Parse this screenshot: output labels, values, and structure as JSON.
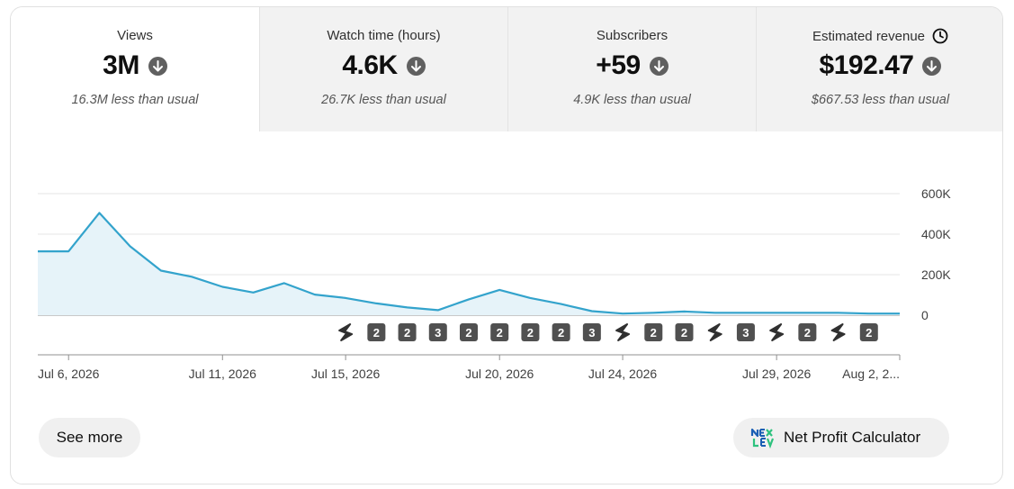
{
  "metrics": [
    {
      "label": "Views",
      "value": "3M",
      "comparison": "16.3M less than usual",
      "trend": "down",
      "active": true
    },
    {
      "label": "Watch time (hours)",
      "value": "4.6K",
      "comparison": "26.7K less than usual",
      "trend": "down",
      "active": false
    },
    {
      "label": "Subscribers",
      "value": "+59",
      "comparison": "4.9K less than usual",
      "trend": "down",
      "active": false
    },
    {
      "label": "Estimated revenue",
      "value": "$192.47",
      "comparison": "$667.53 less than usual",
      "trend": "down",
      "active": false,
      "icon": "clock-icon"
    }
  ],
  "chart_data": {
    "type": "area",
    "title": "",
    "xlabel": "",
    "ylabel": "",
    "ylim": [
      0,
      600000
    ],
    "yticks": [
      0,
      200000,
      400000,
      600000
    ],
    "ytick_labels": [
      "0",
      "200K",
      "400K",
      "600K"
    ],
    "y_axis_position": "right",
    "grid": true,
    "x": [
      "Jul 5",
      "Jul 6",
      "Jul 7",
      "Jul 8",
      "Jul 9",
      "Jul 10",
      "Jul 11",
      "Jul 12",
      "Jul 13",
      "Jul 14",
      "Jul 15",
      "Jul 16",
      "Jul 17",
      "Jul 18",
      "Jul 19",
      "Jul 20",
      "Jul 21",
      "Jul 22",
      "Jul 23",
      "Jul 24",
      "Jul 25",
      "Jul 26",
      "Jul 27",
      "Jul 28",
      "Jul 29",
      "Jul 30",
      "Jul 31",
      "Aug 1",
      "Aug 2"
    ],
    "values": [
      315000,
      315000,
      505000,
      340000,
      220000,
      190000,
      140000,
      112000,
      158000,
      102000,
      85000,
      58000,
      38000,
      25000,
      78000,
      125000,
      85000,
      55000,
      20000,
      8000,
      12000,
      18000,
      12000,
      12000,
      12000,
      12000,
      12000,
      8000,
      8000
    ],
    "x_tick_labels": [
      {
        "index": 1,
        "label": "Jul 6, 2026"
      },
      {
        "index": 6,
        "label": "Jul 11, 2026"
      },
      {
        "index": 10,
        "label": "Jul 15, 2026"
      },
      {
        "index": 15,
        "label": "Jul 20, 2026"
      },
      {
        "index": 19,
        "label": "Jul 24, 2026"
      },
      {
        "index": 24,
        "label": "Jul 29, 2026"
      },
      {
        "index": 28,
        "label": "Aug 2, 2..."
      }
    ],
    "line_color": "#33a3cc",
    "fill_color": "#e6f3f9",
    "markers": [
      {
        "index": 10,
        "type": "shorts",
        "label": ""
      },
      {
        "index": 11,
        "type": "count",
        "label": "2"
      },
      {
        "index": 12,
        "type": "count",
        "label": "2"
      },
      {
        "index": 13,
        "type": "count",
        "label": "3"
      },
      {
        "index": 14,
        "type": "count",
        "label": "2"
      },
      {
        "index": 15,
        "type": "count",
        "label": "2"
      },
      {
        "index": 16,
        "type": "count",
        "label": "2"
      },
      {
        "index": 17,
        "type": "count",
        "label": "2"
      },
      {
        "index": 18,
        "type": "count",
        "label": "3"
      },
      {
        "index": 19,
        "type": "shorts",
        "label": ""
      },
      {
        "index": 20,
        "type": "count",
        "label": "2"
      },
      {
        "index": 21,
        "type": "count",
        "label": "2"
      },
      {
        "index": 22,
        "type": "shorts",
        "label": ""
      },
      {
        "index": 23,
        "type": "count",
        "label": "3"
      },
      {
        "index": 24,
        "type": "shorts",
        "label": ""
      },
      {
        "index": 25,
        "type": "count",
        "label": "2"
      },
      {
        "index": 26,
        "type": "shorts",
        "label": ""
      },
      {
        "index": 27,
        "type": "count",
        "label": "2"
      }
    ]
  },
  "actions": {
    "see_more_label": "See more",
    "net_profit_label": "Net Profit Calculator"
  }
}
